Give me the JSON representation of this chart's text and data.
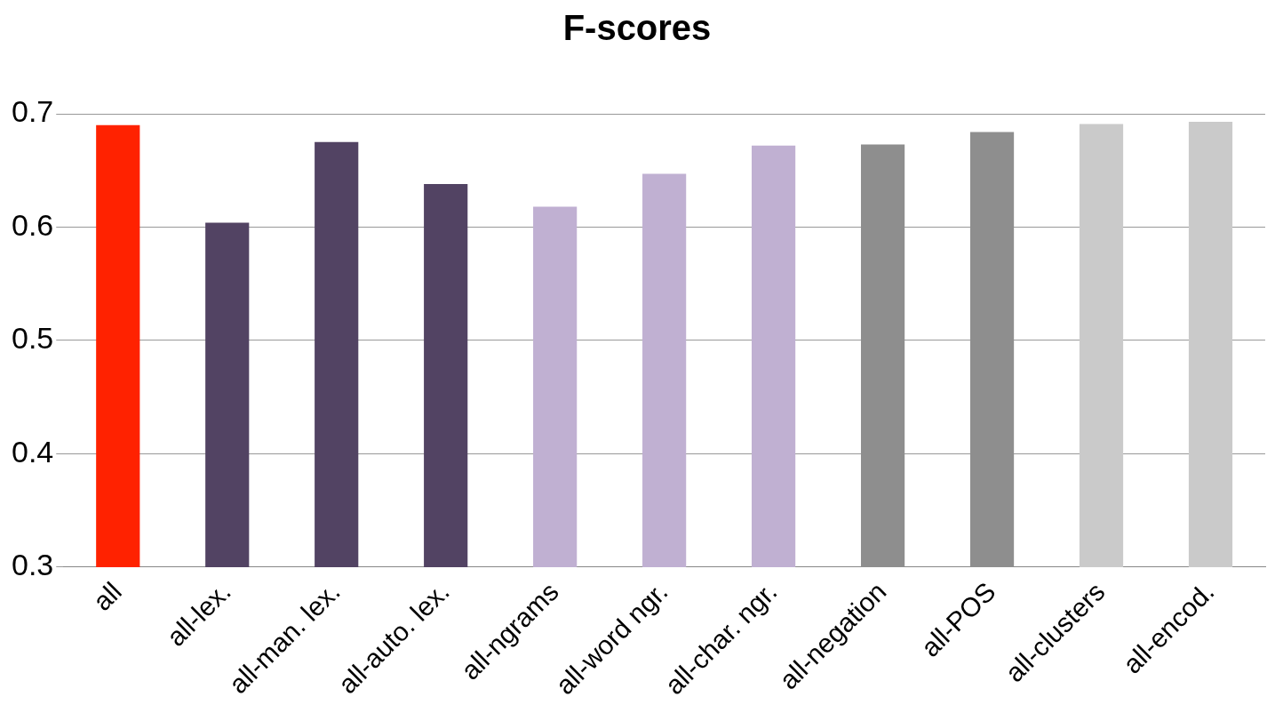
{
  "chart_data": {
    "type": "bar",
    "title": "F-scores",
    "categories": [
      "all",
      "all-lex.",
      "all-man. lex.",
      "all-auto. lex.",
      "all-ngrams",
      "all-word ngr.",
      "all-char. ngr.",
      "all-negation",
      "all-POS",
      "all-clusters",
      "all-encod."
    ],
    "values": [
      0.69,
      0.604,
      0.675,
      0.638,
      0.618,
      0.647,
      0.672,
      0.673,
      0.684,
      0.691,
      0.693
    ],
    "colors": [
      "#ff2200",
      "#524363",
      "#524363",
      "#524363",
      "#c0b0d2",
      "#c0b0d2",
      "#c0b0d2",
      "#8e8e8e",
      "#8e8e8e",
      "#cacaca",
      "#cacaca"
    ],
    "ylim": [
      0.3,
      0.7
    ],
    "yticks": [
      0.3,
      0.4,
      0.5,
      0.6,
      0.7
    ],
    "grid": "y"
  }
}
